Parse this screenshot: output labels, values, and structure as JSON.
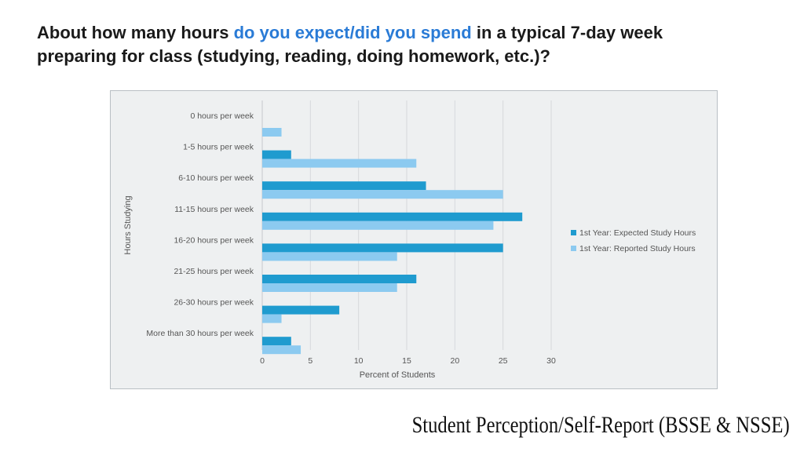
{
  "heading": {
    "part1": "About how many hours ",
    "highlight": "do you expect/did you spend",
    "part2": " in a typical 7-day week preparing for class (studying, reading, doing homework, etc.)?"
  },
  "footer": {
    "text": "Student Perception/Self-Report (BSSE & NSSE)"
  },
  "colors": {
    "highlight": "#2a7bd6",
    "expected": "#1f9bcf",
    "reported": "#8ccaf0",
    "panel": "#eef0f1",
    "grid": "#d6d9dc"
  },
  "chart_data": {
    "type": "bar",
    "orientation": "horizontal",
    "categories": [
      "0 hours per week",
      "1-5 hours per week",
      "6-10 hours per week",
      "11-15 hours per week",
      "16-20 hours per week",
      "21-25 hours per week",
      "26-30 hours per week",
      "More than 30 hours per week"
    ],
    "series": [
      {
        "name": "1st Year:  Expected Study Hours",
        "color": "#1f9bcf",
        "values": [
          0,
          3,
          17,
          27,
          25,
          16,
          8,
          3
        ]
      },
      {
        "name": "1st Year:  Reported Study Hours",
        "color": "#8ccaf0",
        "values": [
          2,
          16,
          25,
          24,
          14,
          14,
          2,
          4
        ]
      }
    ],
    "xlabel": "Percent of Students",
    "ylabel": "Hours Studying",
    "xlim": [
      0,
      30
    ],
    "xticks": [
      "0",
      "5",
      "10",
      "15",
      "20",
      "25",
      "30"
    ],
    "grid": "vertical",
    "legend": "right"
  }
}
